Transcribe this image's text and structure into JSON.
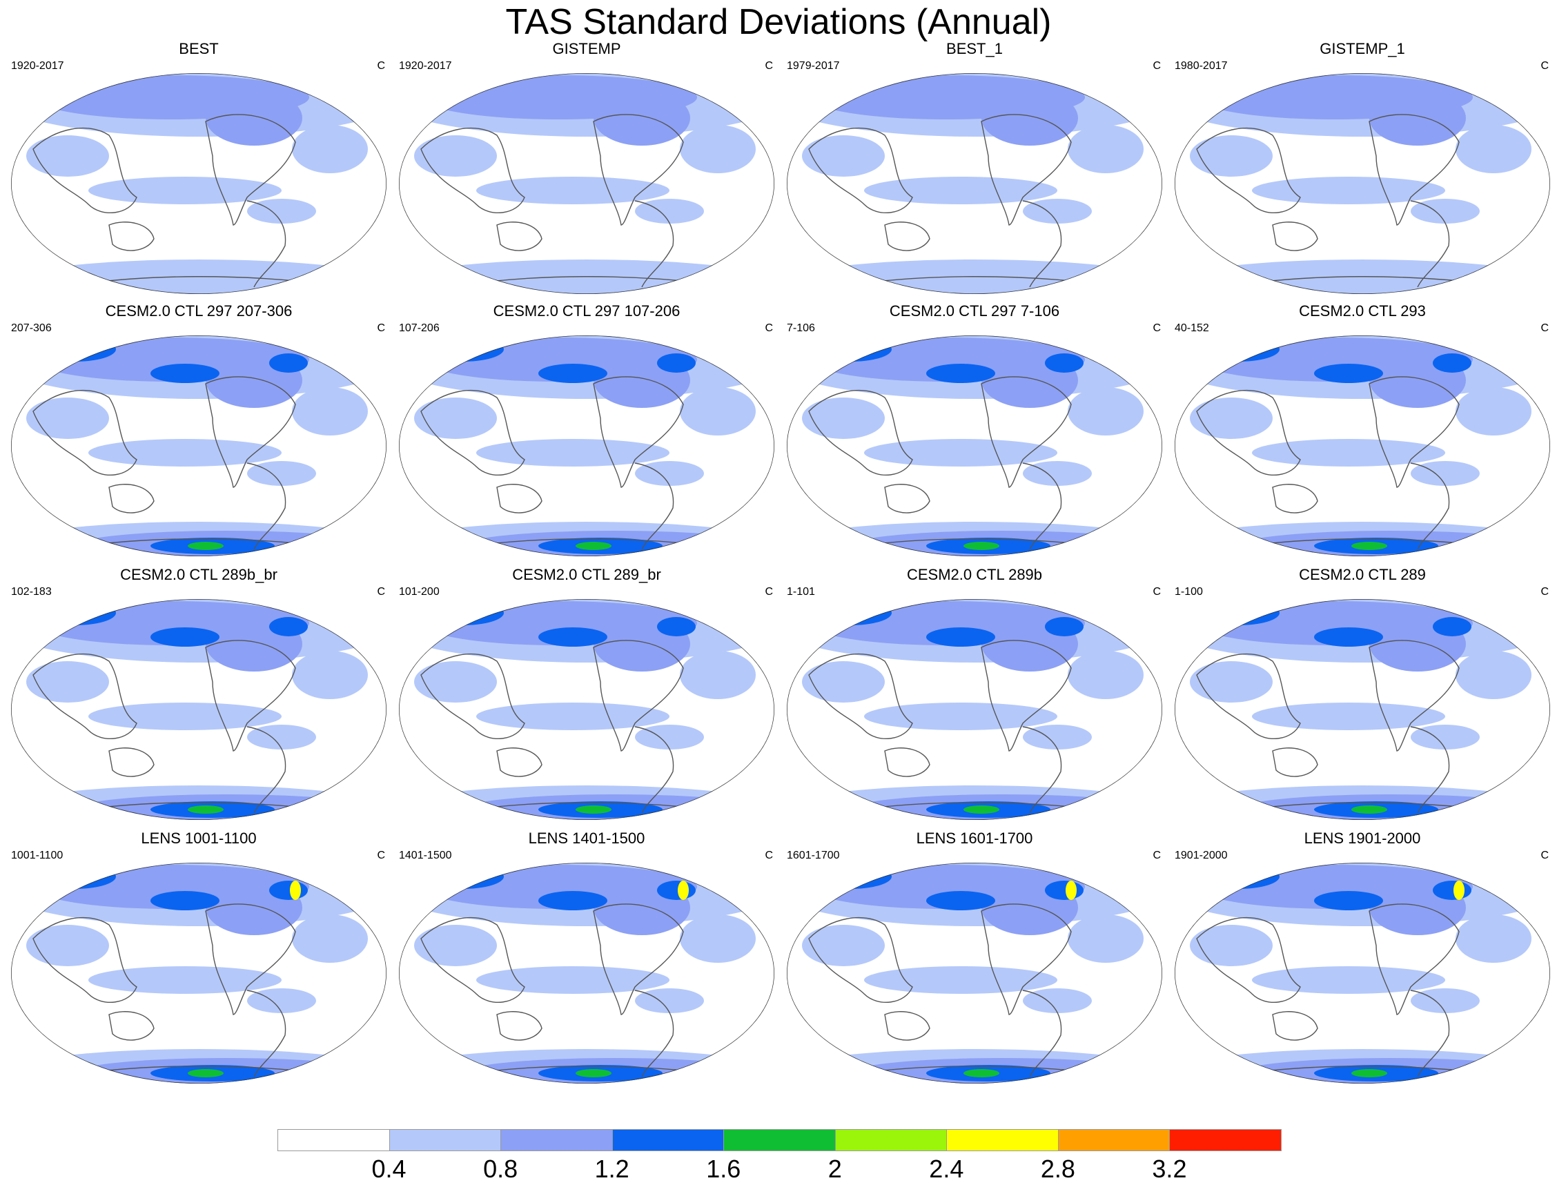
{
  "title": "TAS Standard Deviations (Annual)",
  "unit_label": "C",
  "panels": [
    {
      "title": "BEST",
      "period": "1920-2017",
      "unit": "C",
      "kind": "obs"
    },
    {
      "title": "GISTEMP",
      "period": "1920-2017",
      "unit": "C",
      "kind": "obs"
    },
    {
      "title": "BEST_1",
      "period": "1979-2017",
      "unit": "C",
      "kind": "obs"
    },
    {
      "title": "GISTEMP_1",
      "period": "1980-2017",
      "unit": "C",
      "kind": "obs"
    },
    {
      "title": "CESM2.0 CTL 297 207-306",
      "period": "207-306",
      "unit": "C",
      "kind": "model"
    },
    {
      "title": "CESM2.0 CTL 297 107-206",
      "period": "107-206",
      "unit": "C",
      "kind": "model"
    },
    {
      "title": "CESM2.0 CTL 297 7-106",
      "period": "7-106",
      "unit": "C",
      "kind": "model"
    },
    {
      "title": "CESM2.0 CTL 293",
      "period": "40-152",
      "unit": "C",
      "kind": "model"
    },
    {
      "title": "CESM2.0 CTL 289b_br",
      "period": "102-183",
      "unit": "C",
      "kind": "model"
    },
    {
      "title": "CESM2.0 CTL 289_br",
      "period": "101-200",
      "unit": "C",
      "kind": "model"
    },
    {
      "title": "CESM2.0 CTL 289b",
      "period": "1-101",
      "unit": "C",
      "kind": "model"
    },
    {
      "title": "CESM2.0 CTL 289",
      "period": "1-100",
      "unit": "C",
      "kind": "model"
    },
    {
      "title": "LENS 1001-1100",
      "period": "1001-1100",
      "unit": "C",
      "kind": "lens"
    },
    {
      "title": "LENS 1401-1500",
      "period": "1401-1500",
      "unit": "C",
      "kind": "lens"
    },
    {
      "title": "LENS 1601-1700",
      "period": "1601-1700",
      "unit": "C",
      "kind": "lens"
    },
    {
      "title": "LENS 1901-2000",
      "period": "1901-2000",
      "unit": "C",
      "kind": "lens"
    }
  ],
  "colorbar": {
    "colors": [
      "#ffffff",
      "#b4c8fa",
      "#8ca0f5",
      "#0a64f0",
      "#0fbe32",
      "#9bf50a",
      "#ffff00",
      "#ffa000",
      "#ff1e00"
    ],
    "labels": [
      "0.4",
      "0.8",
      "1.2",
      "1.6",
      "2",
      "2.4",
      "2.8",
      "3.2"
    ]
  }
}
